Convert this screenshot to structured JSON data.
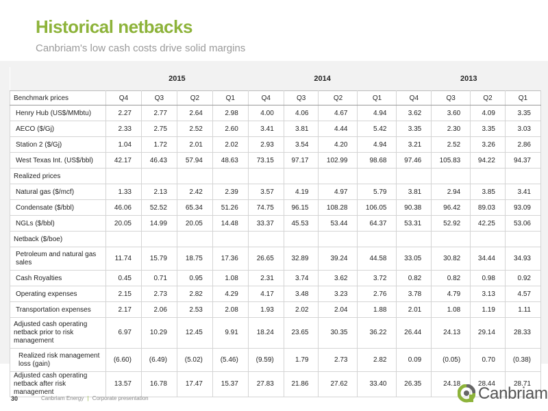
{
  "title": "Historical netbacks",
  "subtitle": "Canbriam's low cash costs drive solid margins",
  "years": [
    "2015",
    "2014",
    "2013"
  ],
  "col_header": {
    "label": "Benchmark prices",
    "quarters": [
      "Q4",
      "Q3",
      "Q2",
      "Q1",
      "Q4",
      "Q3",
      "Q2",
      "Q1",
      "Q4",
      "Q3",
      "Q2",
      "Q1"
    ]
  },
  "rows": [
    {
      "label": "Henry Hub (US$/MMbtu)",
      "values": [
        "2.27",
        "2.77",
        "2.64",
        "2.98",
        "4.00",
        "4.06",
        "4.67",
        "4.94",
        "3.62",
        "3.60",
        "4.09",
        "3.35"
      ]
    },
    {
      "label": "AECO ($/Gj)",
      "values": [
        "2.33",
        "2.75",
        "2.52",
        "2.60",
        "3.41",
        "3.81",
        "4.44",
        "5.42",
        "3.35",
        "2.30",
        "3.35",
        "3.03"
      ]
    },
    {
      "label": "Station 2 ($/Gj)",
      "values": [
        "1.04",
        "1.72",
        "2.01",
        "2.02",
        "2.93",
        "3.54",
        "4.20",
        "4.94",
        "3.21",
        "2.52",
        "3.26",
        "2.86"
      ]
    },
    {
      "label": "West Texas Int. (US$/bbl)",
      "values": [
        "42.17",
        "46.43",
        "57.94",
        "48.63",
        "73.15",
        "97.17",
        "102.99",
        "98.68",
        "97.46",
        "105.83",
        "94.22",
        "94.37"
      ]
    },
    {
      "label": "Realized prices",
      "values": [
        "",
        "",
        "",
        "",
        "",
        "",
        "",
        "",
        "",
        "",
        "",
        ""
      ]
    },
    {
      "label": "Natural gas ($/mcf)",
      "values": [
        "1.33",
        "2.13",
        "2.42",
        "2.39",
        "3.57",
        "4.19",
        "4.97",
        "5.79",
        "3.81",
        "2.94",
        "3.85",
        "3.41"
      ]
    },
    {
      "label": "Condensate ($/bbl)",
      "values": [
        "46.06",
        "52.52",
        "65.34",
        "51.26",
        "74.75",
        "96.15",
        "108.28",
        "106.05",
        "90.38",
        "96.42",
        "89.03",
        "93.09"
      ]
    },
    {
      "label": "NGLs ($/bbl)",
      "values": [
        "20.05",
        "14.99",
        "20.05",
        "14.48",
        "33.37",
        "45.53",
        "53.44",
        "64.37",
        "53.31",
        "52.92",
        "42.25",
        "53.06"
      ]
    },
    {
      "label": "Netback ($/boe)",
      "values": [
        "",
        "",
        "",
        "",
        "",
        "",
        "",
        "",
        "",
        "",
        "",
        ""
      ]
    },
    {
      "label": "Petroleum and natural gas sales",
      "values": [
        "11.74",
        "15.79",
        "18.75",
        "17.36",
        "26.65",
        "32.89",
        "39.24",
        "44.58",
        "33.05",
        "30.82",
        "34.44",
        "34.93"
      ]
    },
    {
      "label": "Cash Royalties",
      "values": [
        "0.45",
        "0.71",
        "0.95",
        "1.08",
        "2.31",
        "3.74",
        "3.62",
        "3.72",
        "0.82",
        "0.82",
        "0.98",
        "0.92"
      ]
    },
    {
      "label": "Operating expenses",
      "values": [
        "2.15",
        "2.73",
        "2.82",
        "4.29",
        "4.17",
        "3.48",
        "3.23",
        "2.76",
        "3.78",
        "4.79",
        "3.13",
        "4.57"
      ]
    },
    {
      "label": "Transportation expenses",
      "values": [
        "2.17",
        "2.06",
        "2.53",
        "2.08",
        "1.93",
        "2.02",
        "2.04",
        "1.88",
        "2.01",
        "1.08",
        "1.19",
        "1.11"
      ]
    },
    {
      "label": "Adjusted cash operating netback prior to risk management",
      "values": [
        "6.97",
        "10.29",
        "12.45",
        "9.91",
        "18.24",
        "23.65",
        "30.35",
        "36.22",
        "26.44",
        "24.13",
        "29.14",
        "28.33"
      ]
    },
    {
      "label": "Realized risk management loss (gain)",
      "values": [
        "(6.60)",
        "(6.49)",
        "(5.02)",
        "(5.46)",
        "(9.59)",
        "1.79",
        "2.73",
        "2.82",
        "0.09",
        "(0.05)",
        "0.70",
        "(0.38)"
      ]
    },
    {
      "label": "Adjusted cash operating netback after risk management",
      "values": [
        "13.57",
        "16.78",
        "17.47",
        "15.37",
        "27.83",
        "21.86",
        "27.62",
        "33.40",
        "26.35",
        "24.18",
        "28.44",
        "28.71"
      ]
    }
  ],
  "footer": {
    "page_number": "30",
    "company": "Canbriam Energy",
    "separator": "|",
    "doc": "Corporate presentation"
  },
  "logo": {
    "text": "Canbriam",
    "icon": "canbriam-logo-icon",
    "colors": {
      "green": "#8db33a",
      "gray": "#666666"
    }
  }
}
